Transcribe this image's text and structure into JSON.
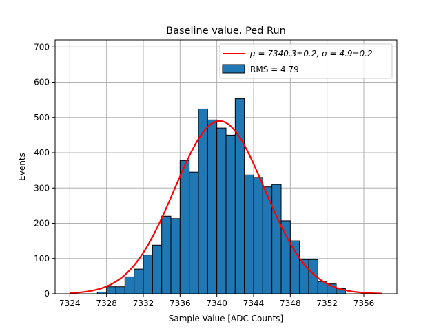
{
  "chart_data": {
    "type": "bar",
    "title": "Baseline value, Ped Run",
    "xlabel": "Sample Value [ADC Counts]",
    "ylabel": "Events",
    "xlim": [
      7322.4,
      7359.6
    ],
    "ylim": [
      0,
      720
    ],
    "grid": true,
    "x_ticks": [
      7324,
      7328,
      7332,
      7336,
      7340,
      7344,
      7348,
      7352,
      7356
    ],
    "y_ticks": [
      0,
      100,
      200,
      300,
      400,
      500,
      600,
      700
    ],
    "bin_width": 1,
    "bin_edges_start": 7327,
    "histogram": {
      "name": "RMS = 4.79",
      "bin_centers": [
        7327.5,
        7328.5,
        7329.5,
        7330.5,
        7331.5,
        7332.5,
        7333.5,
        7334.5,
        7335.5,
        7336.5,
        7337.5,
        7338.5,
        7339.5,
        7340.5,
        7341.5,
        7342.5,
        7343.5,
        7344.5,
        7345.5,
        7346.5,
        7347.5,
        7348.5,
        7349.5,
        7350.5,
        7351.5,
        7352.5,
        7353.5
      ],
      "values": [
        5,
        20,
        20,
        48,
        70,
        110,
        138,
        220,
        213,
        378,
        345,
        524,
        493,
        470,
        450,
        553,
        337,
        330,
        303,
        310,
        207,
        150,
        97,
        97,
        35,
        28,
        15
      ]
    },
    "fit": {
      "name": "$\\mu = 7340.3\\pm0.2$, $\\sigma = 4.9\\pm0.2$",
      "legend_label": "μ = 7340.3±0.2, σ = 4.9±0.2",
      "mu": 7340.3,
      "sigma": 4.9,
      "amplitude": 490,
      "x_range": [
        7324,
        7358
      ]
    },
    "colors": {
      "bar_fill": "#1f77b4",
      "bar_edge": "#000000",
      "fit_line": "#ff0000",
      "grid": "#b0b0b0"
    },
    "legend_position": "top-right"
  }
}
